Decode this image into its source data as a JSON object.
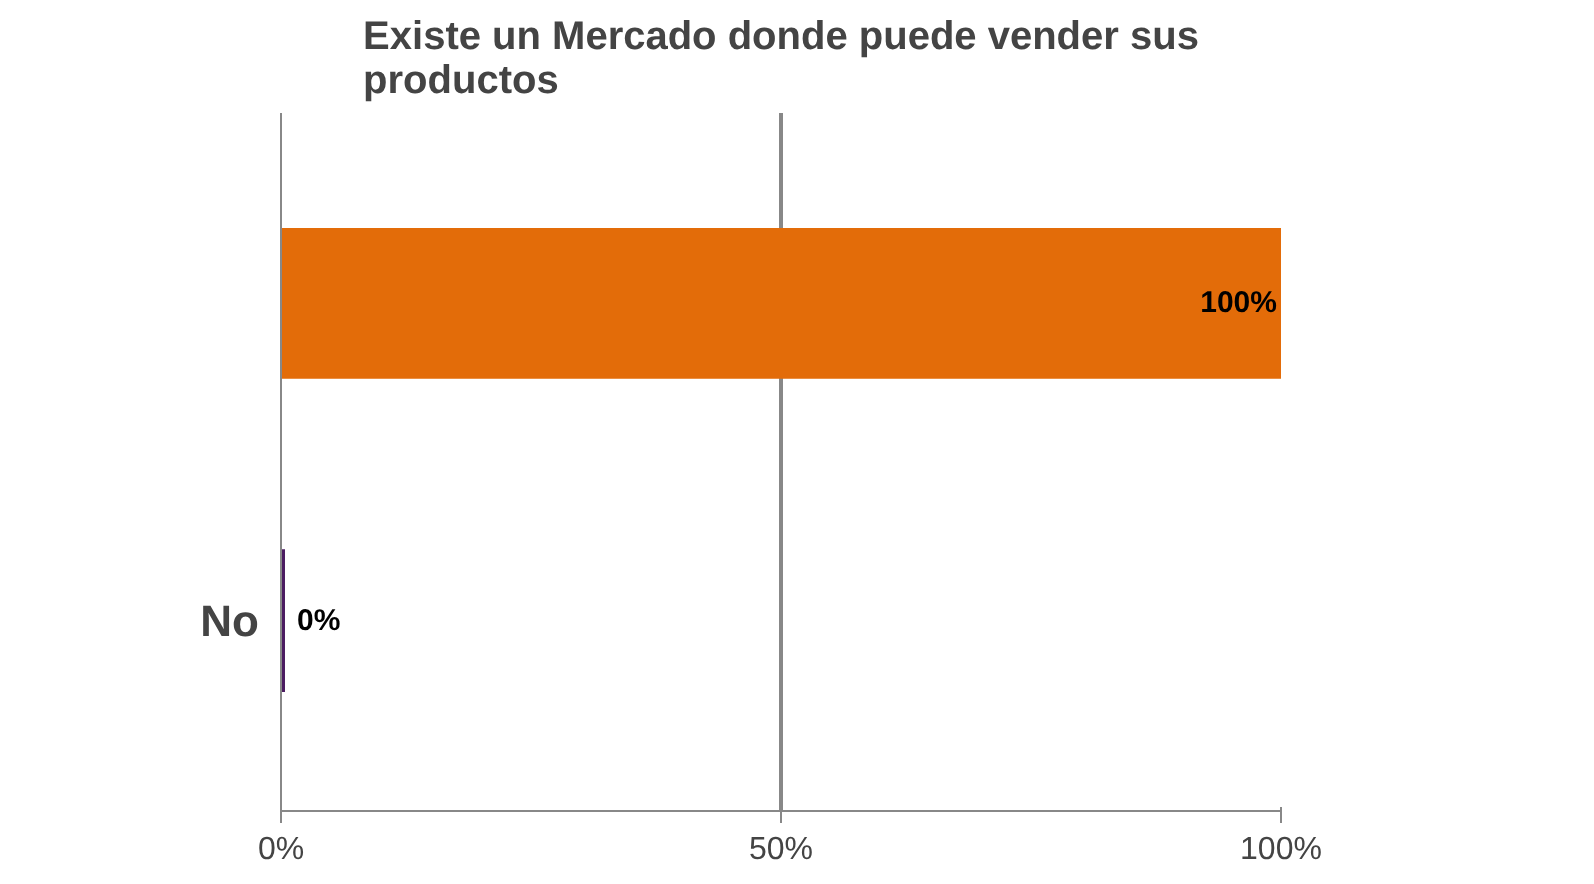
{
  "chart_data": {
    "type": "bar",
    "orientation": "horizontal",
    "title": "Existe un Mercado donde puede vender sus productos",
    "categories": [
      null,
      "No"
    ],
    "values": [
      100,
      0
    ],
    "colors": [
      "#e36c09",
      "#4b1c61"
    ],
    "value_labels": [
      "100%",
      "0%"
    ],
    "xlim": [
      0,
      100
    ],
    "xticks": [
      {
        "value": 0,
        "label": "0%"
      },
      {
        "value": 50,
        "label": "50%"
      },
      {
        "value": 100,
        "label": "100%"
      }
    ],
    "grid": "x"
  }
}
